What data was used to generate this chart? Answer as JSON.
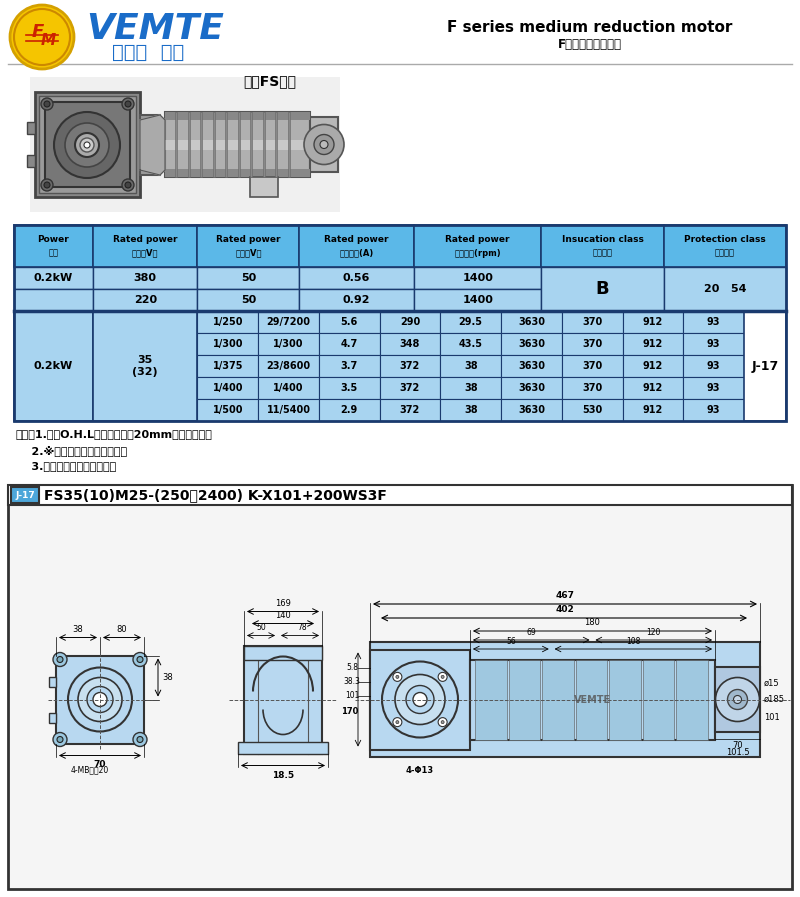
{
  "bg_color": "#ffffff",
  "header_text1": "F series medium reduction motor",
  "header_text2": "F系列中型减速電機",
  "subtitle": "中空FS系列",
  "table_header_bg": "#5bb8e8",
  "table_data_bg": "#a8d4f0",
  "table_border": "#1a3a6e",
  "col_headers_line1": [
    "Power",
    "Rated power",
    "Rated power",
    "Rated power",
    "Rated power",
    "Insucation class",
    "Protection class"
  ],
  "col_headers_line2": [
    "功率",
    "電壓（V）",
    "頻率（V）",
    "隐定電流(A)",
    "隐定轉速(rpm)",
    "絕緣等級",
    "防護等級"
  ],
  "row1_vals": [
    "0.2kW",
    "380",
    "50",
    "0.56",
    "1400"
  ],
  "row2_vals": [
    "",
    "220",
    "50",
    "0.92",
    "1400"
  ],
  "insulation_b": "B",
  "protection": "20   54",
  "gear_col1": "0.2kW",
  "gear_col2": "35\n(32)",
  "gear_rows": [
    [
      "1/250",
      "29/7200",
      "5.6",
      "290",
      "29.5",
      "3630",
      "370",
      "912",
      "93"
    ],
    [
      "1/300",
      "1/300",
      "4.7",
      "348",
      "43.5",
      "3630",
      "370",
      "912",
      "93"
    ],
    [
      "1/375",
      "23/8600",
      "3.7",
      "372",
      "38",
      "3630",
      "370",
      "912",
      "93"
    ],
    [
      "1/400",
      "1/400",
      "3.5",
      "372",
      "38",
      "3630",
      "370",
      "912",
      "93"
    ],
    [
      "1/500",
      "11/5400",
      "2.9",
      "372",
      "38",
      "3630",
      "530",
      "912",
      "93"
    ]
  ],
  "j17_label": "J-17",
  "notes": [
    "（注）1.容許O.H.L高輸出軸端面20mm位置的數値。",
    "    2.※標記高轉矩力受限機型。",
    "    3.括號（）高實心軸軸徑。"
  ],
  "diagram_title": "FS35(10)M25-(250～2400) K-X101+200WS3F",
  "drawing_bg": "#b8d8f0",
  "dim_labels": {
    "lv_width1": "80",
    "lv_width2": "38",
    "lv_height": "38",
    "lv_bottom": "70",
    "lv_bolt": "4-MB螺距20",
    "mv_top1": "169",
    "mv_top2": "140",
    "mv_sub1": "50",
    "mv_sub2": "78",
    "mv_bottom": "18.5",
    "rv_total": "467",
    "rv_inner": "402",
    "rv_mid": "180",
    "rv_sub1": "69",
    "rv_sub2": "120",
    "rv_sub3": "56",
    "rv_sub4": "108",
    "rv_left1": "5.8",
    "rv_left2": "38.3",
    "rv_left3": "101",
    "rv_left4": "170",
    "rv_bolt": "4-Φ13",
    "rv_bot1": "70",
    "rv_bot2": "101.5",
    "rv_right1": "ø15",
    "rv_right2": "ø185",
    "rv_right3": "101"
  }
}
